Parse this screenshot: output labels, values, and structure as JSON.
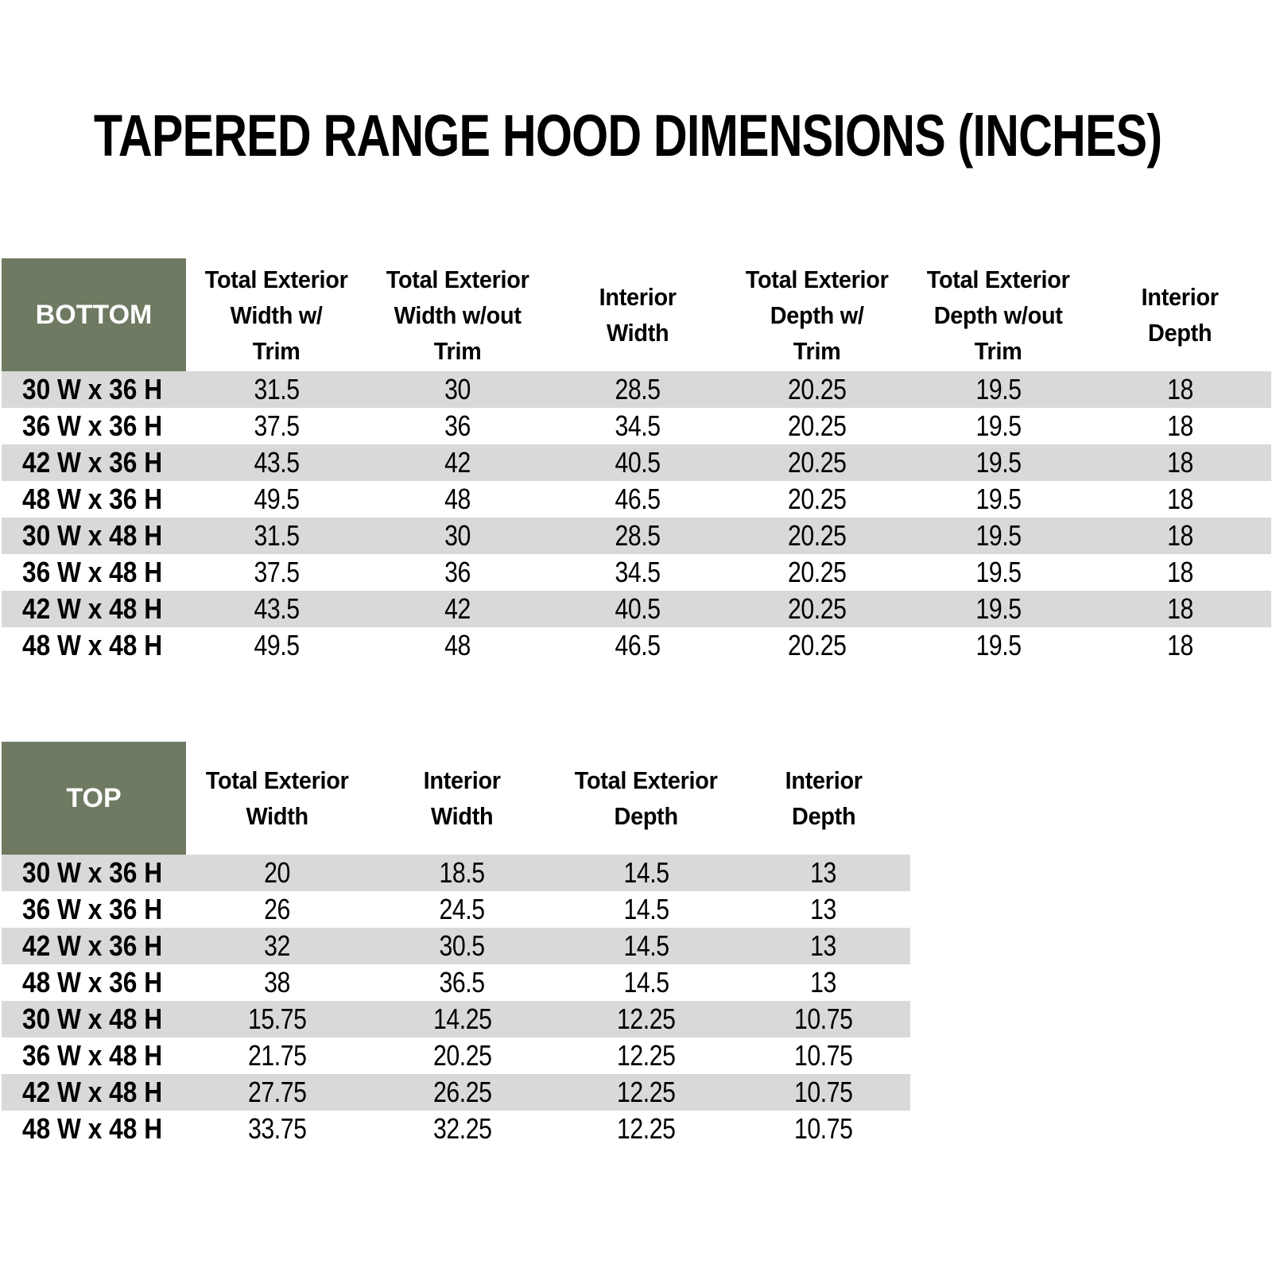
{
  "title": "TAPERED RANGE HOOD DIMENSIONS (INCHES)",
  "colors": {
    "header_green": "#6E7A61",
    "row_gray": "#D9D9D9",
    "header_text": "#FFFFFF",
    "body_text": "#000000"
  },
  "bottom_table": {
    "corner_label": "BOTTOM",
    "columns": [
      "Total Exterior\nWidth w/\nTrim",
      "Total Exterior\nWidth w/out\nTrim",
      "Interior\nWidth",
      "Total Exterior\nDepth w/\nTrim",
      "Total Exterior\nDepth w/out\nTrim",
      "Interior\nDepth"
    ],
    "rows": [
      {
        "label": "30 W x 36 H",
        "values": [
          "31.5",
          "30",
          "28.5",
          "20.25",
          "19.5",
          "18"
        ]
      },
      {
        "label": "36 W x 36 H",
        "values": [
          "37.5",
          "36",
          "34.5",
          "20.25",
          "19.5",
          "18"
        ]
      },
      {
        "label": "42 W x 36 H",
        "values": [
          "43.5",
          "42",
          "40.5",
          "20.25",
          "19.5",
          "18"
        ]
      },
      {
        "label": "48 W x 36 H",
        "values": [
          "49.5",
          "48",
          "46.5",
          "20.25",
          "19.5",
          "18"
        ]
      },
      {
        "label": "30 W x 48 H",
        "values": [
          "31.5",
          "30",
          "28.5",
          "20.25",
          "19.5",
          "18"
        ]
      },
      {
        "label": "36 W x 48 H",
        "values": [
          "37.5",
          "36",
          "34.5",
          "20.25",
          "19.5",
          "18"
        ]
      },
      {
        "label": "42 W x 48 H",
        "values": [
          "43.5",
          "42",
          "40.5",
          "20.25",
          "19.5",
          "18"
        ]
      },
      {
        "label": "48 W x 48 H",
        "values": [
          "49.5",
          "48",
          "46.5",
          "20.25",
          "19.5",
          "18"
        ]
      }
    ]
  },
  "top_table": {
    "corner_label": "TOP",
    "columns": [
      "Total Exterior\nWidth",
      "Interior\nWidth",
      "Total Exterior\nDepth",
      "Interior\nDepth"
    ],
    "rows": [
      {
        "label": "30 W x 36 H",
        "values": [
          "20",
          "18.5",
          "14.5",
          "13"
        ]
      },
      {
        "label": "36 W x 36 H",
        "values": [
          "26",
          "24.5",
          "14.5",
          "13"
        ]
      },
      {
        "label": "42 W x 36 H",
        "values": [
          "32",
          "30.5",
          "14.5",
          "13"
        ]
      },
      {
        "label": "48 W x 36 H",
        "values": [
          "38",
          "36.5",
          "14.5",
          "13"
        ]
      },
      {
        "label": "30 W x 48 H",
        "values": [
          "15.75",
          "14.25",
          "12.25",
          "10.75"
        ]
      },
      {
        "label": "36 W x 48 H",
        "values": [
          "21.75",
          "20.25",
          "12.25",
          "10.75"
        ]
      },
      {
        "label": "42 W x 48 H",
        "values": [
          "27.75",
          "26.25",
          "12.25",
          "10.75"
        ]
      },
      {
        "label": "48 W x 48 H",
        "values": [
          "33.75",
          "32.25",
          "12.25",
          "10.75"
        ]
      }
    ]
  }
}
